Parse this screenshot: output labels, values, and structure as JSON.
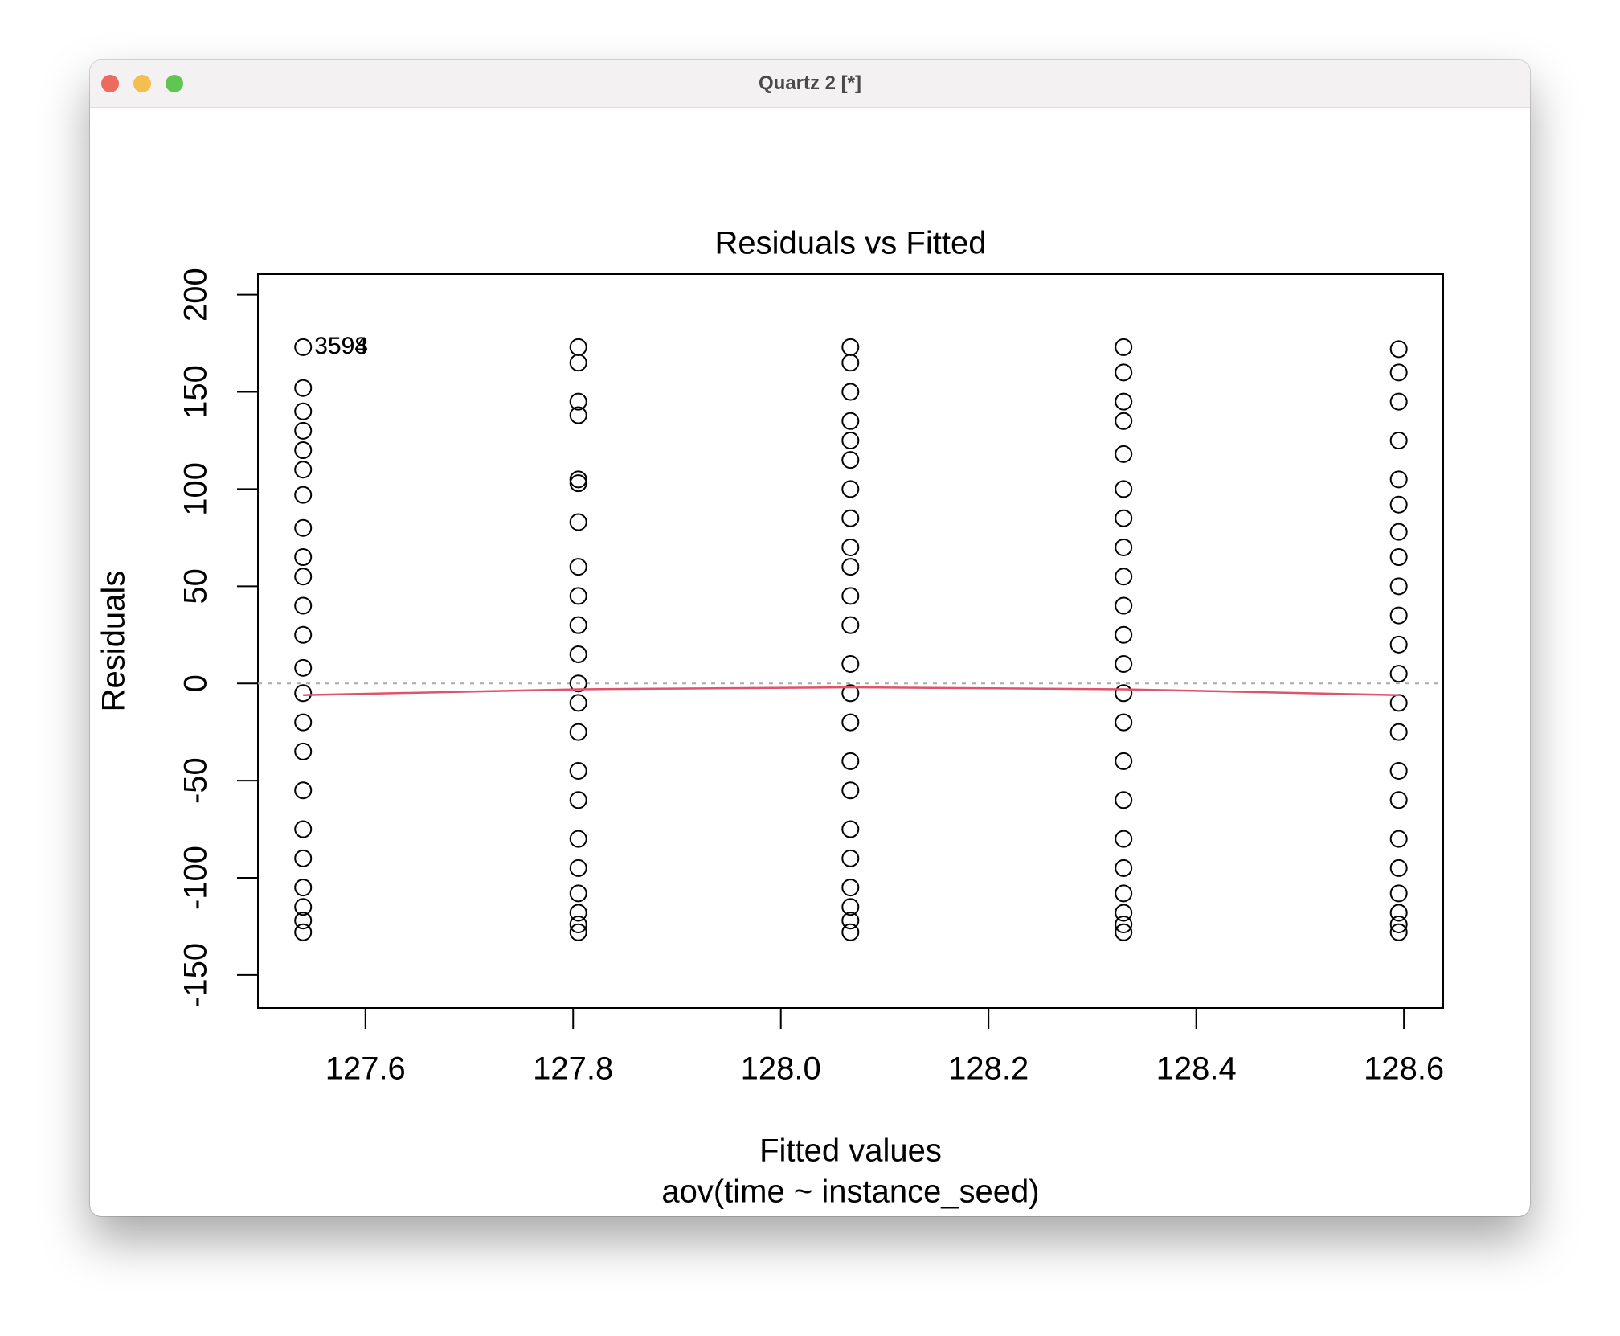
{
  "window": {
    "title": "Quartz 2 [*]"
  },
  "chart_data": {
    "type": "scatter",
    "title": "Residuals vs Fitted",
    "x_label": "Fitted values",
    "subtitle": "aov(time ~ instance_seed)",
    "y_label": "Residuals",
    "x": [
      127.54,
      127.54,
      127.54,
      127.54,
      127.54,
      127.54,
      127.54,
      127.54,
      127.54,
      127.54,
      127.54,
      127.54,
      127.54,
      127.54,
      127.54,
      127.54,
      127.54,
      127.54,
      127.54,
      127.54,
      127.54,
      127.54,
      127.54,
      127.805,
      127.805,
      127.805,
      127.805,
      127.805,
      127.805,
      127.805,
      127.805,
      127.805,
      127.805,
      127.805,
      127.805,
      127.805,
      127.805,
      127.805,
      127.805,
      127.805,
      127.805,
      127.805,
      127.805,
      127.805,
      127.805,
      128.067,
      128.067,
      128.067,
      128.067,
      128.067,
      128.067,
      128.067,
      128.067,
      128.067,
      128.067,
      128.067,
      128.067,
      128.067,
      128.067,
      128.067,
      128.067,
      128.067,
      128.067,
      128.067,
      128.067,
      128.067,
      128.067,
      128.067,
      128.33,
      128.33,
      128.33,
      128.33,
      128.33,
      128.33,
      128.33,
      128.33,
      128.33,
      128.33,
      128.33,
      128.33,
      128.33,
      128.33,
      128.33,
      128.33,
      128.33,
      128.33,
      128.33,
      128.33,
      128.33,
      128.33,
      128.595,
      128.595,
      128.595,
      128.595,
      128.595,
      128.595,
      128.595,
      128.595,
      128.595,
      128.595,
      128.595,
      128.595,
      128.595,
      128.595,
      128.595,
      128.595,
      128.595,
      128.595,
      128.595,
      128.595,
      128.595,
      128.595
    ],
    "values": [
      173,
      152,
      140,
      130,
      120,
      110,
      97,
      80,
      65,
      55,
      40,
      25,
      8,
      -5,
      -20,
      -35,
      -55,
      -75,
      -90,
      -105,
      -115,
      -122,
      -128,
      173,
      165,
      145,
      138,
      105,
      103,
      83,
      60,
      45,
      30,
      15,
      0,
      -10,
      -25,
      -45,
      -60,
      -80,
      -95,
      -108,
      -118,
      -124,
      -128,
      173,
      165,
      150,
      135,
      125,
      115,
      100,
      85,
      70,
      60,
      45,
      30,
      10,
      -5,
      -20,
      -40,
      -55,
      -75,
      -90,
      -105,
      -115,
      -122,
      -128,
      173,
      160,
      145,
      135,
      118,
      100,
      85,
      70,
      55,
      40,
      25,
      10,
      -5,
      -20,
      -40,
      -60,
      -80,
      -95,
      -108,
      -118,
      -124,
      -128,
      172,
      160,
      145,
      125,
      105,
      92,
      78,
      65,
      50,
      35,
      20,
      5,
      -10,
      -25,
      -45,
      -60,
      -80,
      -95,
      -108,
      -118,
      -124,
      -128
    ],
    "color": "#000000",
    "smooth": {
      "x": [
        127.54,
        127.805,
        128.067,
        128.33,
        128.595
      ],
      "values": [
        -6,
        -3,
        -2,
        -3,
        -6
      ],
      "color": "#df536b"
    },
    "reference_line": 0,
    "reference_color": "#aaaaaa",
    "annotations": [
      {
        "text": "3594",
        "x": 127.54,
        "y": 173
      },
      {
        "text": "3598",
        "x": 127.54,
        "y": 173
      }
    ],
    "xlim": [
      127.4965,
      128.6378
    ],
    "ylim": [
      -167,
      210.6
    ],
    "xticks": [
      127.6,
      127.8,
      {
        "value": 128,
        "label": "128.0"
      },
      128.2,
      128.4,
      128.6
    ],
    "yticks": [
      -150,
      -100,
      -50,
      0,
      50,
      100,
      150,
      200
    ]
  }
}
